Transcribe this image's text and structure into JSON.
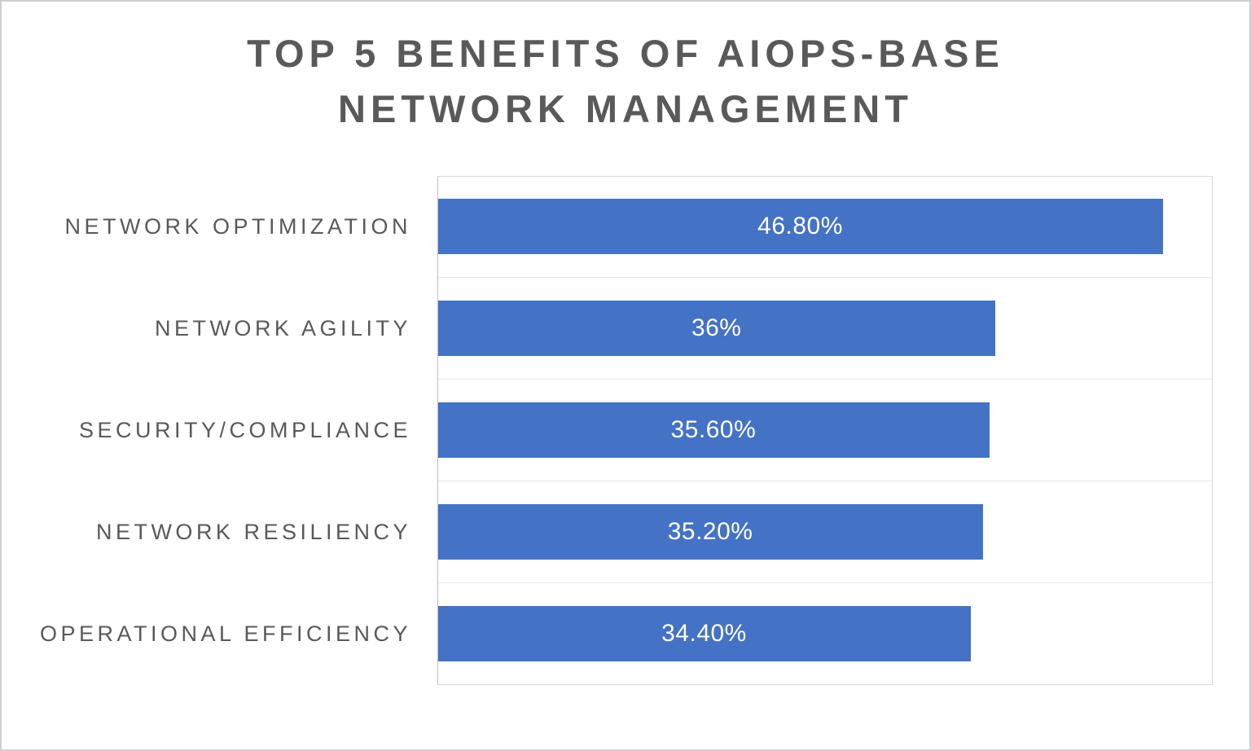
{
  "chart_data": {
    "type": "bar",
    "orientation": "horizontal",
    "title": "TOP 5 BENEFITS OF AIOPS-BASE NETWORK MANAGEMENT",
    "title_lines": [
      "TOP 5 BENEFITS OF AIOPS-BASE",
      "NETWORK MANAGEMENT"
    ],
    "categories": [
      "NETWORK OPTIMIZATION",
      "NETWORK AGILITY",
      "SECURITY/COMPLIANCE",
      "NETWORK RESILIENCY",
      "OPERATIONAL EFFICIENCY"
    ],
    "values": [
      46.8,
      36,
      35.6,
      35.2,
      34.4
    ],
    "value_labels": [
      "46.80%",
      "36%",
      "35.60%",
      "35.20%",
      "34.40%"
    ],
    "xlabel": "",
    "ylabel": "",
    "xlim": [
      0,
      50
    ],
    "bar_color": "#4472C4",
    "label_color": "#595959",
    "grid": true,
    "legend": false
  }
}
